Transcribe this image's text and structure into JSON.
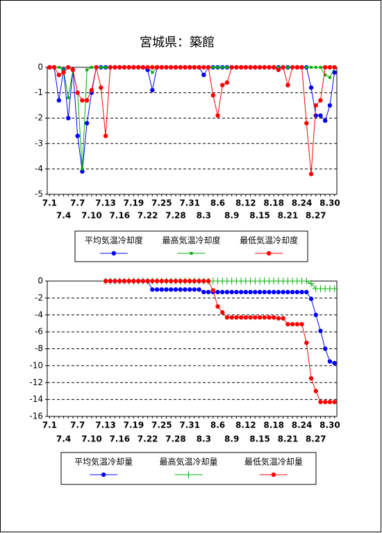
{
  "chart_data": [
    {
      "type": "line",
      "title": "宮城県：築館",
      "categories": [
        "7.1",
        null,
        null,
        "7.4",
        null,
        null,
        "7.7",
        null,
        null,
        "7.10",
        null,
        null,
        "7.13",
        null,
        null,
        "7.16",
        null,
        null,
        "7.19",
        null,
        null,
        "7.22",
        null,
        null,
        "7.25",
        null,
        null,
        "7.28",
        null,
        null,
        "7.31",
        null,
        null,
        "8.3",
        null,
        null,
        "8.6",
        null,
        null,
        "8.9",
        null,
        null,
        "8.12",
        null,
        null,
        "8.15",
        null,
        null,
        "8.18",
        null,
        null,
        "8.21",
        null,
        null,
        "8.24",
        null,
        null,
        "8.27",
        null,
        null,
        "8.30",
        null
      ],
      "ylim": [
        -5,
        0
      ],
      "yticks": [
        0,
        -1,
        -2,
        -3,
        -4,
        -5
      ],
      "grid": true,
      "series": [
        {
          "name": "平均気温冷却度",
          "color": "#0000ff",
          "marker": "circle",
          "values": [
            0,
            0,
            -1.3,
            -0.1,
            -2.0,
            -0.1,
            -2.7,
            -4.1,
            -2.2,
            -1.0,
            0,
            0,
            0,
            0,
            0,
            0,
            0,
            0,
            0,
            0,
            0,
            -0.1,
            -0.9,
            0,
            0,
            0,
            0,
            0,
            0,
            0,
            0,
            0,
            0,
            -0.3,
            0,
            0,
            0,
            0,
            0,
            0,
            0,
            0,
            0,
            0,
            0,
            0,
            0,
            0,
            0,
            0,
            0,
            0,
            0,
            0,
            0,
            0,
            -0.8,
            -1.9,
            -1.9,
            -2.1,
            -1.5,
            -0.2
          ]
        },
        {
          "name": "最高気温冷却度",
          "color": "#00b000",
          "marker": "square",
          "values": [
            0,
            0,
            0,
            -0.1,
            -1.2,
            -0.1,
            -1.0,
            -4.0,
            -0.1,
            0,
            0,
            0,
            0,
            0,
            0,
            0,
            0,
            0,
            0,
            0,
            0,
            0,
            -0.2,
            0,
            0,
            0,
            0,
            0,
            0,
            0,
            0,
            0,
            0,
            0,
            0,
            0,
            0,
            0,
            0,
            0,
            0,
            0,
            0,
            0,
            0,
            0,
            0,
            0,
            0,
            0,
            0,
            0,
            0,
            0,
            0,
            0,
            0,
            0,
            0,
            -0.3,
            -0.4,
            0
          ]
        },
        {
          "name": "最低気温冷却度",
          "color": "#ff0000",
          "marker": "circle",
          "values": [
            0,
            0,
            -0.3,
            -0.2,
            0,
            -0.1,
            -1.0,
            -1.3,
            -1.3,
            -0.9,
            0,
            -0.8,
            -2.7,
            0,
            0,
            0,
            0,
            0,
            0,
            0,
            0,
            0,
            0,
            0,
            0,
            0,
            0,
            0,
            0,
            0,
            0,
            0,
            0,
            0,
            0,
            -1.1,
            -1.9,
            -0.7,
            -0.6,
            0,
            0,
            0,
            0,
            0,
            0,
            0,
            0,
            0,
            0,
            -0.1,
            0,
            -0.7,
            0,
            0,
            0,
            -2.2,
            -4.2,
            -1.5,
            -1.3,
            0,
            0,
            0
          ]
        }
      ]
    },
    {
      "type": "line",
      "categories": [
        "7.1",
        null,
        null,
        "7.4",
        null,
        null,
        "7.7",
        null,
        null,
        "7.10",
        null,
        null,
        "7.13",
        null,
        null,
        "7.16",
        null,
        null,
        "7.19",
        null,
        null,
        "7.22",
        null,
        null,
        "7.25",
        null,
        null,
        "7.28",
        null,
        null,
        "7.31",
        null,
        null,
        "8.3",
        null,
        null,
        "8.6",
        null,
        null,
        "8.9",
        null,
        null,
        "8.12",
        null,
        null,
        "8.15",
        null,
        null,
        "8.18",
        null,
        null,
        "8.21",
        null,
        null,
        "8.24",
        null,
        null,
        "8.27",
        null,
        null,
        "8.30",
        null
      ],
      "ylim": [
        -16,
        0
      ],
      "yticks": [
        0,
        -2,
        -4,
        -6,
        -8,
        -10,
        -12,
        -14,
        -16
      ],
      "grid": true,
      "series": [
        {
          "name": "平均気温冷却量",
          "color": "#0000ff",
          "marker": "circle",
          "values": [
            null,
            null,
            null,
            null,
            null,
            null,
            null,
            null,
            null,
            null,
            null,
            null,
            0,
            0,
            0,
            0,
            0,
            0,
            0,
            0,
            0,
            0,
            -1.0,
            -1.0,
            -1.0,
            -1.0,
            -1.0,
            -1.0,
            -1.0,
            -1.0,
            -1.0,
            -1.0,
            -1.0,
            -1.3,
            -1.3,
            -1.3,
            -1.3,
            -1.3,
            -1.3,
            -1.3,
            -1.3,
            -1.3,
            -1.3,
            -1.3,
            -1.3,
            -1.3,
            -1.3,
            -1.3,
            -1.3,
            -1.3,
            -1.3,
            -1.3,
            -1.3,
            -1.3,
            -1.3,
            -1.3,
            -2.1,
            -4.0,
            -5.9,
            -8.0,
            -9.5,
            -9.7
          ]
        },
        {
          "name": "最高気温冷却量",
          "color": "#00b000",
          "marker": "plus",
          "values": [
            null,
            null,
            null,
            null,
            null,
            null,
            null,
            null,
            null,
            null,
            null,
            null,
            0,
            0,
            0,
            0,
            0,
            0,
            0,
            0,
            0,
            0,
            0,
            0,
            0,
            0,
            0,
            0,
            0,
            0,
            0,
            0,
            0,
            0,
            0,
            0,
            0,
            0,
            0,
            0,
            0,
            0,
            0,
            0,
            0,
            0,
            0,
            0,
            0,
            0,
            0,
            0,
            0,
            0,
            0,
            0,
            -0.3,
            -0.9,
            -0.9,
            -0.9,
            -0.9,
            -0.9
          ]
        },
        {
          "name": "最低気温冷却量",
          "color": "#ff0000",
          "marker": "circle",
          "values": [
            null,
            null,
            null,
            null,
            null,
            null,
            null,
            null,
            null,
            null,
            null,
            null,
            0,
            0,
            0,
            0,
            0,
            0,
            0,
            0,
            0,
            0,
            0,
            0,
            0,
            0,
            0,
            0,
            0,
            0,
            0,
            0,
            0,
            0,
            0,
            -1.1,
            -3.0,
            -3.7,
            -4.3,
            -4.3,
            -4.3,
            -4.3,
            -4.3,
            -4.3,
            -4.3,
            -4.3,
            -4.3,
            -4.3,
            -4.3,
            -4.4,
            -4.4,
            -5.1,
            -5.1,
            -5.1,
            -5.1,
            -7.3,
            -11.5,
            -13.0,
            -14.3,
            -14.3,
            -14.3,
            -14.3
          ]
        }
      ]
    }
  ]
}
